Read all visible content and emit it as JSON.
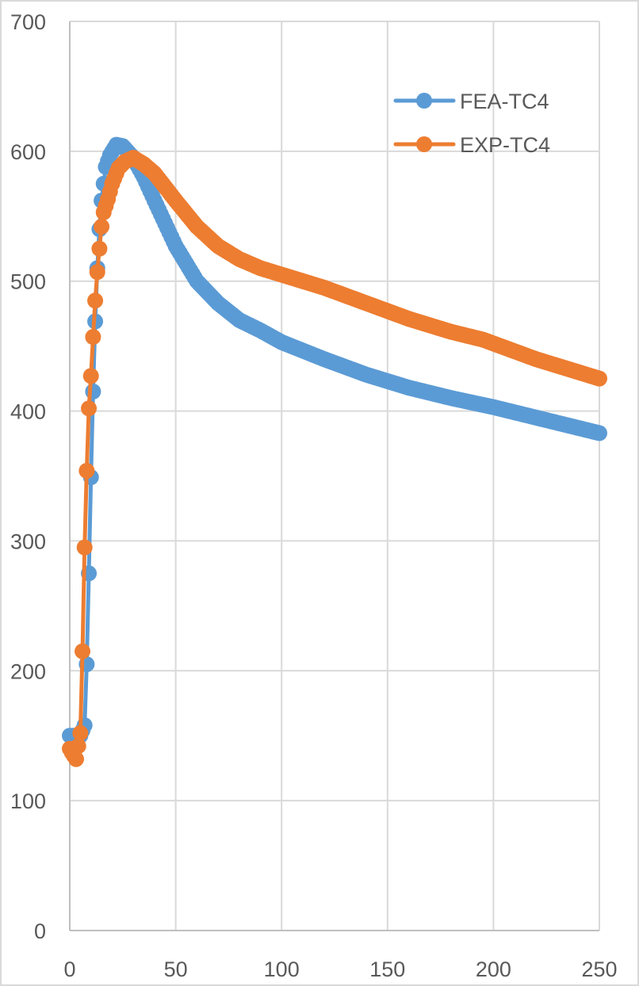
{
  "chart_data": {
    "type": "line",
    "title": "",
    "xlabel": "",
    "ylabel": "",
    "xlim": [
      0,
      250
    ],
    "ylim": [
      0,
      700
    ],
    "x_ticks": [
      "0",
      "50",
      "100",
      "150",
      "200",
      "250"
    ],
    "y_ticks": [
      "0",
      "100",
      "200",
      "300",
      "400",
      "500",
      "600",
      "700"
    ],
    "grid": true,
    "legend_position": "upper right (inside plot)",
    "series": [
      {
        "name": "FEA-TC4",
        "color": "#5b9bd5",
        "x": [
          0,
          5,
          7,
          8,
          9,
          10,
          11,
          12,
          13,
          14,
          15,
          17,
          19,
          22,
          25,
          30,
          35,
          40,
          50,
          60,
          70,
          80,
          90,
          100,
          120,
          140,
          160,
          180,
          200,
          220,
          250
        ],
        "y": [
          150,
          150,
          158,
          205,
          275,
          349,
          415,
          469,
          510,
          540,
          562,
          588,
          597,
          605,
          604,
          595,
          580,
          562,
          527,
          500,
          483,
          470,
          462,
          453,
          440,
          428,
          418,
          410,
          403,
          395,
          383
        ]
      },
      {
        "name": "EXP-TC4",
        "color": "#ed7d31",
        "x": [
          0,
          1,
          3,
          5,
          6,
          7,
          8,
          9,
          10,
          11,
          12,
          13,
          14,
          15,
          16,
          18,
          20,
          23,
          26,
          30,
          35,
          40,
          50,
          60,
          70,
          80,
          90,
          100,
          120,
          140,
          160,
          180,
          195,
          200,
          220,
          250
        ],
        "y": [
          140,
          137,
          132,
          152,
          215,
          295,
          354,
          402,
          427,
          457,
          485,
          507,
          525,
          542,
          553,
          563,
          575,
          587,
          592,
          595,
          590,
          583,
          562,
          542,
          527,
          517,
          510,
          505,
          495,
          483,
          471,
          461,
          455,
          452,
          440,
          425
        ]
      }
    ]
  },
  "legend": {
    "items": [
      {
        "label": "FEA-TC4",
        "color": "#5b9bd5"
      },
      {
        "label": "EXP-TC4",
        "color": "#ed7d31"
      }
    ]
  },
  "axes": {
    "x_tick_labels": [
      "0",
      "50",
      "100",
      "150",
      "200",
      "250"
    ],
    "y_tick_labels": [
      "0",
      "100",
      "200",
      "300",
      "400",
      "500",
      "600",
      "700"
    ]
  }
}
